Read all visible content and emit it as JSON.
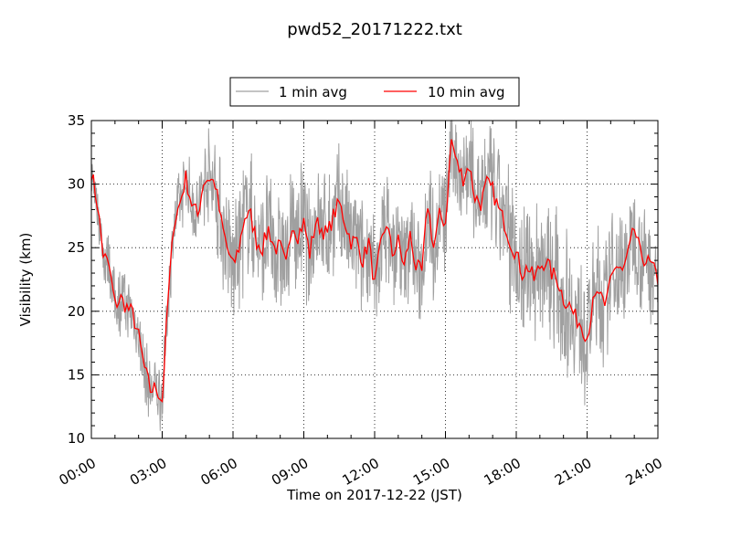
{
  "chart_data": {
    "type": "line",
    "title": "pwd52_20171222.txt",
    "xlabel": "Time on 2017-12-22 (JST)",
    "ylabel": "Visibility (km)",
    "xlim": [
      "00:00",
      "24:00"
    ],
    "ylim": [
      10,
      35
    ],
    "x_ticks": [
      "00:00",
      "03:00",
      "06:00",
      "09:00",
      "12:00",
      "15:00",
      "18:00",
      "21:00",
      "24:00"
    ],
    "y_ticks": [
      "10",
      "15",
      "20",
      "25",
      "30",
      "35"
    ],
    "grid": true,
    "legend_position": "above-plot-center",
    "colors": {
      "1min": "#a0a0a0",
      "10min": "#ff0000"
    },
    "series": [
      {
        "name": "1 min avg",
        "sampled": true,
        "spread_km": [
          [
            0,
            1.5
          ],
          [
            1,
            2.5
          ],
          [
            2,
            2.5
          ],
          [
            3,
            2.5
          ],
          [
            4,
            2.5
          ],
          [
            6,
            5
          ],
          [
            10,
            4.5
          ],
          [
            15,
            4
          ],
          [
            18,
            5.5
          ],
          [
            21,
            5
          ],
          [
            24,
            4
          ]
        ]
      },
      {
        "name": "10 min avg",
        "x": [
          "00:00",
          "00:15",
          "00:30",
          "00:45",
          "01:00",
          "01:15",
          "01:30",
          "01:45",
          "02:00",
          "02:15",
          "02:30",
          "02:45",
          "03:00",
          "03:15",
          "03:30",
          "03:45",
          "04:00",
          "04:15",
          "04:30",
          "04:45",
          "05:00",
          "05:15",
          "05:30",
          "05:45",
          "06:00",
          "06:15",
          "06:30",
          "06:45",
          "07:00",
          "07:15",
          "07:30",
          "07:45",
          "08:00",
          "08:15",
          "08:30",
          "08:45",
          "09:00",
          "09:15",
          "09:30",
          "09:45",
          "10:00",
          "10:15",
          "10:30",
          "10:45",
          "11:00",
          "11:15",
          "11:30",
          "11:45",
          "12:00",
          "12:15",
          "12:30",
          "12:45",
          "13:00",
          "13:15",
          "13:30",
          "13:45",
          "14:00",
          "14:15",
          "14:30",
          "14:45",
          "15:00",
          "15:15",
          "15:30",
          "15:45",
          "16:00",
          "16:15",
          "16:30",
          "16:45",
          "17:00",
          "17:15",
          "17:30",
          "17:45",
          "18:00",
          "18:15",
          "18:30",
          "18:45",
          "19:00",
          "19:15",
          "19:30",
          "19:45",
          "20:00",
          "20:15",
          "20:30",
          "20:45",
          "21:00",
          "21:15",
          "21:30",
          "21:45",
          "22:00",
          "22:15",
          "22:30",
          "22:45",
          "23:00",
          "23:15",
          "23:30",
          "23:45",
          "24:00"
        ],
        "values": [
          31,
          28.5,
          24.5,
          23.5,
          20.5,
          21,
          20.3,
          19.8,
          18,
          15.5,
          13.8,
          14,
          13,
          21,
          27,
          28.5,
          30.5,
          28.5,
          27.5,
          30.2,
          30.5,
          30,
          27,
          25,
          23.5,
          25,
          27.5,
          27.5,
          25.5,
          25,
          26.5,
          25,
          25,
          23.5,
          27,
          26,
          27,
          24.5,
          27,
          26.5,
          26,
          27.5,
          28.5,
          27,
          25.5,
          25.5,
          24,
          25.5,
          22,
          25,
          27,
          24.5,
          25.5,
          23.5,
          26,
          23.5,
          23,
          28.5,
          25,
          27.5,
          27,
          33.5,
          31.5,
          30.5,
          31.5,
          29,
          28.5,
          30,
          29.5,
          28,
          27,
          25.5,
          24.5,
          23,
          23.5,
          22.5,
          23.5,
          24,
          23,
          22.5,
          21,
          20.5,
          19.5,
          19,
          18,
          20.5,
          21.5,
          20,
          23,
          23.5,
          23,
          24.5,
          26.5,
          24.5,
          24,
          23.5,
          22.5
        ]
      }
    ]
  }
}
